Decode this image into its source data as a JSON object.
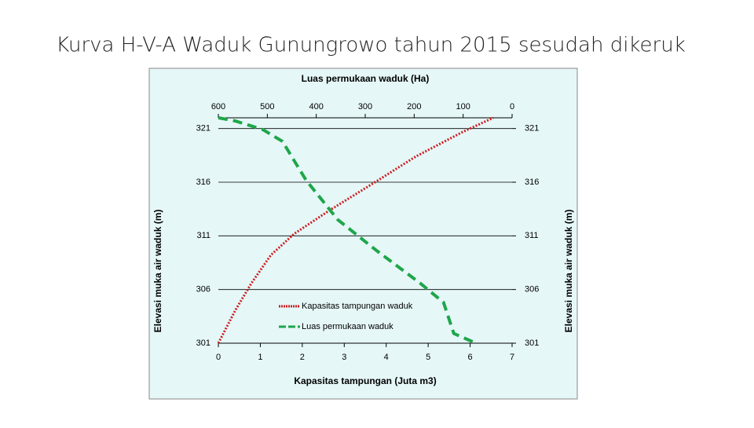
{
  "chart_data": {
    "type": "line",
    "title": "Kurva H-V-A Waduk Gunungrowo tahun 2015 sesudah dikeruk",
    "xlabel": "Kapasitas tampungan (Juta m3)",
    "x2label": "Luas permukaan waduk (Ha)",
    "ylabel": "Elevasi muka air waduk (m)",
    "y2label": "Elevasi muka air waduk (m)",
    "xlim": [
      0,
      7
    ],
    "xticks": [
      0,
      1,
      2,
      3,
      4,
      5,
      6,
      7
    ],
    "x2lim": [
      600,
      0
    ],
    "x2ticks": [
      600,
      500,
      400,
      300,
      200,
      100,
      0
    ],
    "ylim": [
      301,
      322
    ],
    "yticks": [
      301,
      306,
      311,
      316,
      321
    ],
    "y2lim": [
      301,
      322
    ],
    "y2ticks": [
      301,
      306,
      311,
      316,
      321
    ],
    "grid": true,
    "legend": "lower-center",
    "series": [
      {
        "name": "Kapasitas tampungan waduk",
        "color": "#cc1f1f",
        "style": "dotted",
        "x": [
          0,
          0.41,
          0.79,
          1.25,
          1.81,
          2.66,
          3.69,
          4.71,
          5.83,
          6.55
        ],
        "values": [
          301,
          304.1,
          306.6,
          309.2,
          311.2,
          313.4,
          315.9,
          318.4,
          320.7,
          322
        ]
      },
      {
        "name": "Luas permukaan waduk",
        "color": "#1fa64a",
        "style": "dashed",
        "axis": "x2",
        "x": [
          600,
          565,
          509,
          469,
          421,
          356,
          276,
          188,
          140,
          119,
          79
        ],
        "values": [
          322,
          321.7,
          320.9,
          319.8,
          316.2,
          312.5,
          309.6,
          306.6,
          304.8,
          301.9,
          301.1
        ]
      }
    ]
  }
}
